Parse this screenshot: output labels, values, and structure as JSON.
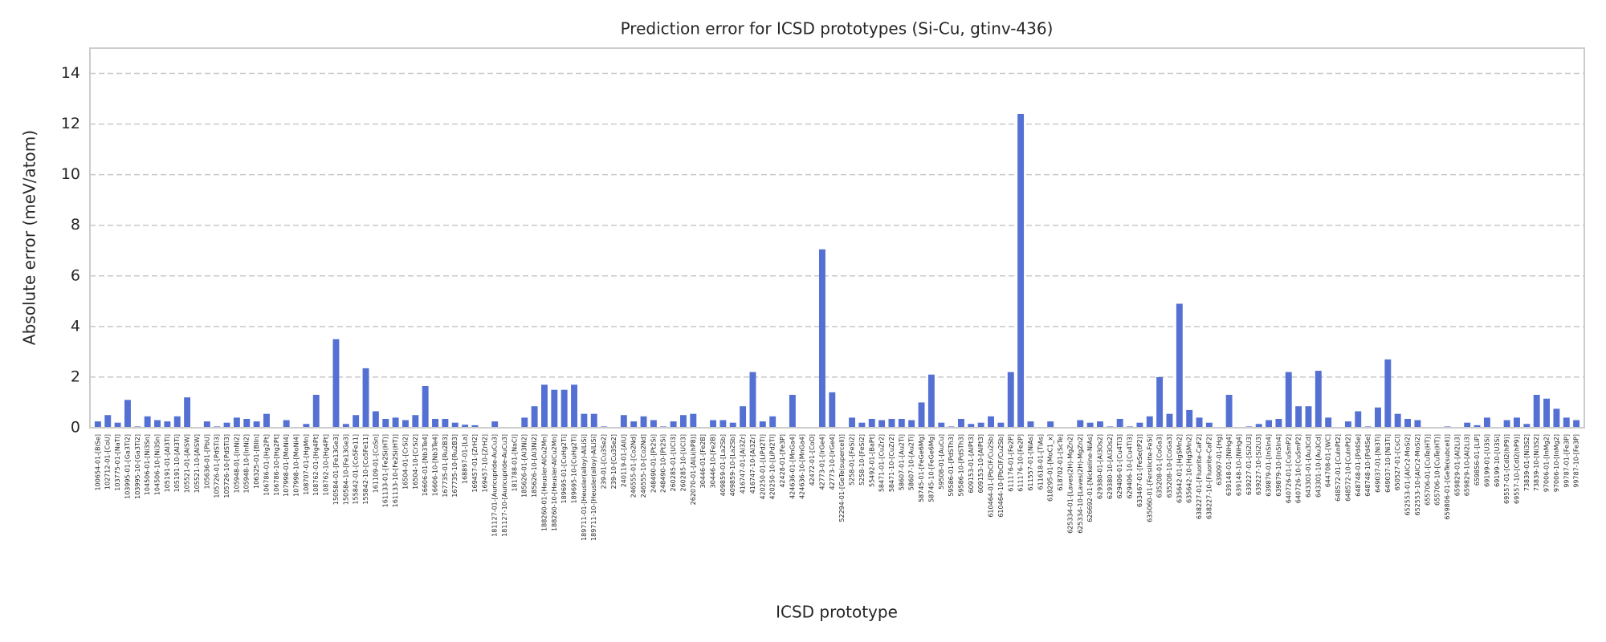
{
  "chart_data": {
    "type": "bar",
    "title": "Prediction error for ICSD prototypes (Si-Cu, gtinv-436)",
    "xlabel": "ICSD prototype",
    "ylabel": "Absolute error (meV/atom)",
    "color": "#5470d3",
    "grid": true,
    "ylim": [
      0,
      15
    ],
    "yticks": [
      0,
      2,
      4,
      6,
      8,
      10,
      12,
      14
    ],
    "categories": [
      "100654-01-[BiSe]",
      "102712-01-[CoU]",
      "103775-01-[NaTl]",
      "103995-01-[Ga3Ti2]",
      "103995-10-[Ga3Ti2]",
      "104506-01-[Ni3Sn]",
      "104506-10-[Ni3Sn]",
      "105191-01-[Al3Ti]",
      "105191-10-[Al3Ti]",
      "105521-01-[AlSW]",
      "105521-10-[AlSW]",
      "105636-01-[PbU]",
      "105726-01-[PdSTi3]",
      "105726-10-[PdSTi3]",
      "105948-01-[InNi2]",
      "105948-10-[InNi2]",
      "106325-01-[BIIn]",
      "106786-01-[Hg2Pt]",
      "106786-10-[Hg2Pt]",
      "107998-01-[MoNi4]",
      "107998-10-[MoNi4]",
      "108707-01-[HgMn]",
      "108762-01-[Hg4Pt]",
      "108762-10-[Hg4Pt]",
      "150584-01-[Fe13Ge3]",
      "150584-10-[Fe13Ge3]",
      "155842-01-[Co5Fe11]",
      "155842-10-[Co5Fe11]",
      "161109-01-[CoSn]",
      "161133-01-[Fe2Si(HT)]",
      "161133-10-[Fe2Si(HT)]",
      "16504-01-[CrSi2]",
      "16504-10-[CrSi2]",
      "16606-01-[Nb3Te4]",
      "16606-10-[Nb3Te4]",
      "167735-01-[Ru2B3]",
      "167735-10-[Ru2B3]",
      "168897-01-[La]",
      "169457-01-[ZrH2]",
      "169457-10-[ZrH2]",
      "181127-01-[Auricupride-AuCu3]",
      "181127-10-[Auricupride-AuCu3]",
      "181788-01-[NaCl]",
      "185626-01-[Al3Ni2]",
      "185626-10-[Al3Ni2]",
      "188260-01-[Heusler-AlCu2Mn]",
      "188260-10-[Heusler-AlCu2Mn]",
      "189695-01-[CuHg2Ti]",
      "189695-10-[CuHg2Ti]",
      "189711-01-[Heusler(alloy)-AlLiSi]",
      "189711-10-[Heusler(alloy)-AlLiSi]",
      "239-01-[Cu3Se2]",
      "239-10-[Cu3Se2]",
      "240119-01-[AlU]",
      "246555-01-[Co2Nd]",
      "246555-10-[Co2Nd]",
      "248490-01-[Pt2Si]",
      "248490-10-[Pt2Si]",
      "260285-01-[UCl3]",
      "260285-10-[UCl3]",
      "262070-01-[AlLi(hP8)]",
      "30446-01-[Fe2B]",
      "30446-10-[Fe2B]",
      "409859-01-[La2Sb]",
      "409859-10-[La2Sb]",
      "416747-01-[Al3Zr]",
      "416747-10-[Al3Zr]",
      "420250-01-[LiPd2Tl]",
      "420250-10-[LiPd2Tl]",
      "42428-01-[Fe3P]",
      "424636-01-[MnGa4]",
      "424636-10-[MnGa4]",
      "42472-01-[CoO]",
      "42773-01-[IrGe4]",
      "42773-10-[IrGe4]",
      "52294-01-[GeTe(supercell)]",
      "5258-01-[FeSi2]",
      "5258-10-[FeSi2]",
      "55492-01-[BaPt]",
      "58471-01-[CuZr2]",
      "58471-10-[CuZr2]",
      "58607-01-[Au2Ti]",
      "58607-10-[Au2Ti]",
      "58745-01-[FeGe6Mg]",
      "58745-10-[FeGe6Mg]",
      "59508-01-[AuCu]",
      "59586-01-[PdSTh3]",
      "59586-10-[PdSTh3]",
      "609153-01-[AlPt3]",
      "609153-10-[AlPt3]",
      "610464-01-[PbClF/Cu2Sb]",
      "610464-10-[PbClF/Cu2Sb]",
      "611176-01-[Fe2P]",
      "611176-10-[Fe2P]",
      "611557-01-[NiAs]",
      "611618-01-[TlAs]",
      "618295-01-[MoC1_x]",
      "618702-01-[ScTe]",
      "625334-01-[Laves(2H)-MgZn2]",
      "625334-10-[Laves(2H)-MgZn2]",
      "626692-01-[Nickeline-NiAs]",
      "629380-01-[Al3Os2]",
      "629380-10-[Al3Os2]",
      "629406-01-[Cu4Ti3]",
      "629406-10-[Cu4Ti3]",
      "633467-01-[FeSe(tP2)]",
      "635060-01-[Fersilicite-FeSi]",
      "635208-01-[CoGa3]",
      "635208-10-[CoGa3]",
      "635642-01-[HgSMn2]",
      "635642-10-[HgSMn2]",
      "638227-01-[Fluorite-CaF2]",
      "638227-10-[Fluorite-CaF2]",
      "639097-01-[Hg]",
      "639148-01-[NiHg4]",
      "639148-10-[NiHg4]",
      "639227-01-[Si2U3]",
      "639227-10-[Si2U3]",
      "639879-01-[InSIn4]",
      "639879-10-[InSIn4]",
      "640726-01-[CuSmP2]",
      "640726-10-[CuSmP2]",
      "643301-01-[Au3Cd]",
      "643301-10-[Au3Cd]",
      "644708-01-[WC]",
      "648572-01-[CuInPt2]",
      "648572-10-[CuInPt2]",
      "648748-01-[Pd4Se]",
      "648748-10-[Pd4Se]",
      "649037-01-[Ni3Ti]",
      "649037-10-[Ni3Ti]",
      "650527-01-[CsCl]",
      "652553-01-[AlCr2-MoSi2]",
      "652553-10-[AlCr2-MoSi2]",
      "655706-01-[CuTe(HT)]",
      "655706-10-[CuTe(HT)]",
      "659806-01-[GeTe(subcell)]",
      "659829-01-[Al2Li3]",
      "659829-10-[Al2Li3]",
      "659856-01-[LiP]",
      "69199-01-[U3Si]",
      "69199-10-[U3Si]",
      "69557-01-[CdI2(hP9)]",
      "69557-10-[CdI2(hP9)]",
      "73839-01-[Ni3S2]",
      "73839-10-[Ni3S2]",
      "97006-01-[InMg2]",
      "97006-10-[InMg2]",
      "99787-01-[Fe3P]",
      "99787-10-[Fe3P]"
    ],
    "values": [
      0.25,
      0.5,
      0.2,
      1.1,
      0.05,
      0.45,
      0.3,
      0.25,
      0.45,
      1.2,
      0.02,
      0.25,
      0.05,
      0.2,
      0.4,
      0.35,
      0.25,
      0.55,
      0.02,
      0.3,
      0.02,
      0.15,
      1.3,
      0.02,
      3.5,
      0.15,
      0.5,
      2.35,
      0.65,
      0.35,
      0.4,
      0.3,
      0.5,
      1.65,
      0.35,
      0.35,
      0.2,
      0.12,
      0.1,
      0.02,
      0.25,
      0.02,
      0.02,
      0.4,
      0.85,
      1.7,
      1.5,
      1.5,
      1.7,
      0.55,
      0.55,
      0.05,
      0.02,
      0.5,
      0.25,
      0.45,
      0.3,
      0.05,
      0.25,
      0.5,
      0.55,
      0.02,
      0.3,
      0.3,
      0.2,
      0.85,
      2.2,
      0.25,
      0.45,
      0.02,
      1.3,
      0.02,
      0.02,
      7.05,
      1.4,
      0.02,
      0.4,
      0.2,
      0.35,
      0.3,
      0.35,
      0.35,
      0.3,
      1.0,
      2.1,
      0.2,
      0.05,
      0.35,
      0.15,
      0.2,
      0.45,
      0.2,
      2.2,
      12.4,
      0.25,
      0.02,
      0.25,
      0.02,
      0.02,
      0.3,
      0.2,
      0.25,
      0.05,
      0.35,
      0.05,
      0.2,
      0.45,
      2.0,
      0.55,
      4.9,
      0.7,
      0.4,
      0.2,
      0.02,
      1.3,
      0.02,
      0.05,
      0.15,
      0.3,
      0.35,
      2.2,
      0.85,
      0.85,
      2.25,
      0.4,
      0.02,
      0.25,
      0.65,
      0.05,
      0.8,
      2.7,
      0.55,
      0.35,
      0.3,
      0.02,
      0.02,
      0.05,
      0.02,
      0.2,
      0.1,
      0.4,
      0.02,
      0.3,
      0.4,
      0.15,
      1.3,
      1.15,
      0.75,
      0.4,
      0.3
    ]
  }
}
